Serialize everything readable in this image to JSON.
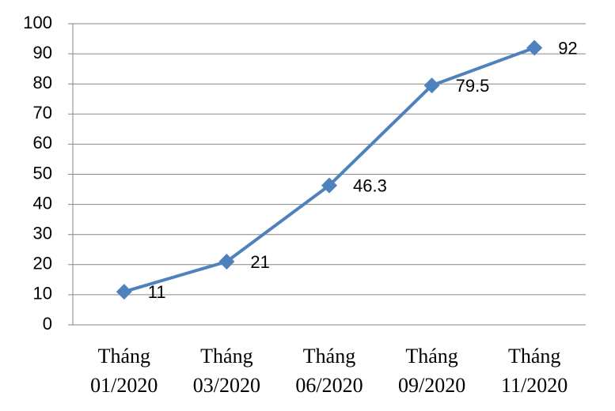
{
  "chart_data": {
    "type": "line",
    "categories": [
      "Tháng 01/2020",
      "Tháng 03/2020",
      "Tháng 06/2020",
      "Tháng 09/2020",
      "Tháng 11/2020"
    ],
    "values": [
      11,
      21,
      46.3,
      79.5,
      92
    ],
    "color": "#4f81bd",
    "ylim": [
      0,
      100
    ],
    "yticks": [
      0,
      10,
      20,
      30,
      40,
      50,
      60,
      70,
      80,
      90,
      100
    ],
    "grid": true
  }
}
